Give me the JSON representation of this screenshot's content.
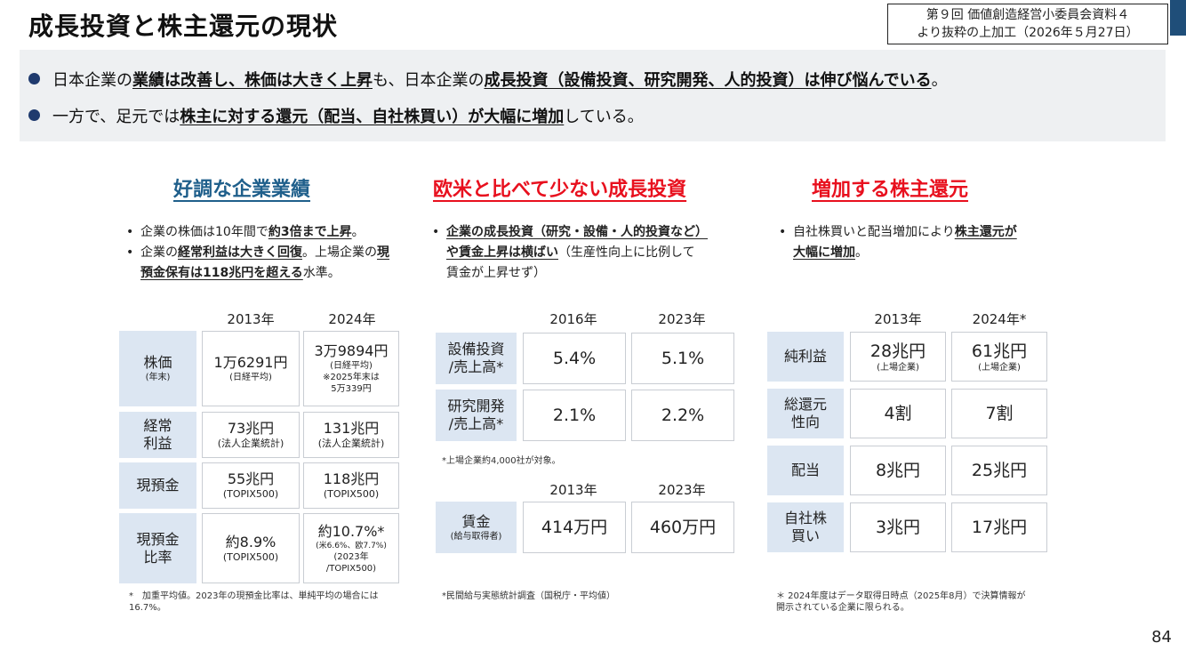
{
  "title": "成長投資と株主還元の現状",
  "source": {
    "line1": "第９回 価値創造経営小委員会資料４",
    "line2": "より抜粋の上加工（2026年５月27日）"
  },
  "summary": {
    "line1": {
      "t1": "日本企業の",
      "b1": "業績は改善し、株価は大きく上昇",
      "t2": "も、日本企業の",
      "b2": "成長投資（設備投資、研究開発、人的投資）は伸び悩んでいる",
      "t3": "。"
    },
    "line2": {
      "t1": "一方で、足元では",
      "b1": "株主に対する還元（配当、自社株買い）が大幅に増加",
      "t2": "している。"
    }
  },
  "col1": {
    "heading": "好調な企業業績",
    "heading_color": "#1f5f8b",
    "bullet1": {
      "t1": "企業の株価は10年間で",
      "b1": "約3倍まで上昇",
      "t2": "。"
    },
    "bullet2": {
      "t1": "企業の",
      "b1": "経常利益は大きく回復",
      "t2": "。上場企業の",
      "b2": "現預金保有は118兆円を超える",
      "t3": "水準。"
    },
    "years": [
      "2013年",
      "2024年"
    ],
    "rows": [
      {
        "label": "株価",
        "label_sub": "(年末)",
        "v1": "1万6291円",
        "v1_sub": "(日経平均)",
        "v2": "3万9894円",
        "v2_sub": "(日経平均)",
        "v2_sub2": "※2025年末は",
        "v2_sub3": "5万339円"
      },
      {
        "label1": "経常",
        "label2": "利益",
        "v1": "73兆円",
        "v1_sub": "(法人企業統計)",
        "v2": "131兆円",
        "v2_sub": "(法人企業統計)"
      },
      {
        "label": "現預金",
        "v1": "55兆円",
        "v1_sub": "(TOPIX500)",
        "v2": "118兆円",
        "v2_sub": "(TOPIX500)"
      },
      {
        "label1": "現預金",
        "label2": "比率",
        "v1": "約8.9%",
        "v1_sub": "(TOPIX500)",
        "v2": "約10.7%*",
        "v2_sub": "(米6.6%、欧7.7%)",
        "v2_sub2": "(2023年",
        "v2_sub3": "/TOPIX500)"
      }
    ],
    "note1": "*　加重平均値。2023年の現預金比率は、単純平均の場合には",
    "note2": "16.7%。"
  },
  "col2": {
    "heading": "欧米と比べて少ない成長投資",
    "heading_color": "#e8101e",
    "bullet": {
      "b1": "企業の成長投資（研究・設備・人的投資など）",
      "b2": "や賃金上昇は横ばい",
      "t1": "（生産性向上に比例して",
      "t2": "賃金が上昇せず）"
    },
    "years_a": [
      "2016年",
      "2023年"
    ],
    "rows_a": [
      {
        "label1": "設備投資",
        "label2": "/売上高*",
        "v1": "5.4%",
        "v2": "5.1%"
      },
      {
        "label1": "研究開発",
        "label2": "/売上高*",
        "v1": "2.1%",
        "v2": "2.2%"
      }
    ],
    "note_a": "*上場企業約4,000社が対象。",
    "years_b": [
      "2013年",
      "2023年"
    ],
    "row_b": {
      "label": "賃金",
      "label_sub": "(給与取得者)",
      "v1": "414万円",
      "v2": "460万円"
    },
    "note_b": "*民間給与実態統計調査（国税庁・平均値）"
  },
  "col3": {
    "heading": "増加する株主還元",
    "heading_color": "#e8101e",
    "bullet": {
      "t1": "自社株買いと配当増加により",
      "b1": "株主還元が",
      "b2": "大幅に増加",
      "t2": "。"
    },
    "years": [
      "2013年",
      "2024年*"
    ],
    "rows": [
      {
        "label": "純利益",
        "v1": "28兆円",
        "v1_sub": "(上場企業)",
        "v2": "61兆円",
        "v2_sub": "(上場企業)"
      },
      {
        "label1": "総還元",
        "label2": "性向",
        "v1": "4割",
        "v2": "7割"
      },
      {
        "label": "配当",
        "v1": "8兆円",
        "v2": "25兆円"
      },
      {
        "label1": "自社株",
        "label2": "買い",
        "v1": "3兆円",
        "v2": "17兆円"
      }
    ],
    "note1": "＊ 2024年度はデータ取得日時点（2025年8月）で決算情報が",
    "note2": "開示されている企業に限られる。"
  },
  "page_number": "84"
}
